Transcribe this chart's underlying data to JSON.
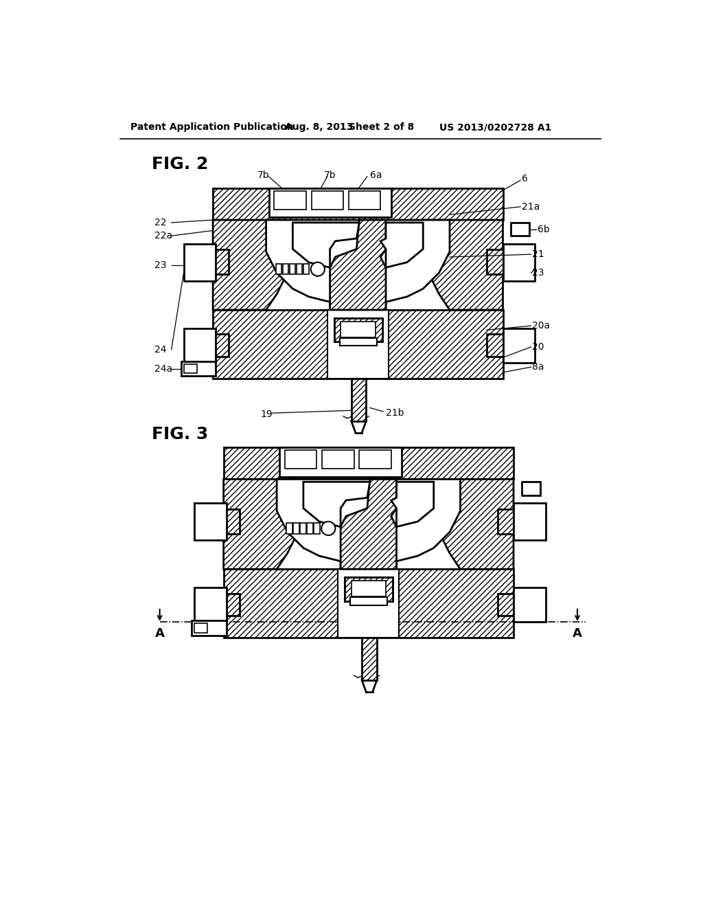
{
  "background_color": "#ffffff",
  "header_text": "Patent Application Publication",
  "header_date": "Aug. 8, 2013",
  "header_sheet": "Sheet 2 of 8",
  "header_patent": "US 2013/0202728 A1",
  "fig2_label": "FIG. 2",
  "fig3_label": "FIG. 3",
  "line_color": "#000000",
  "hatch_pattern": "////",
  "labels_fig2": [
    "7b",
    "7b",
    "6a",
    "6",
    "21a",
    "6b",
    "21",
    "23",
    "20a",
    "20",
    "8a",
    "21b",
    "19",
    "24a",
    "24",
    "23",
    "22a",
    "22"
  ],
  "labels_fig3": [
    "A",
    "A"
  ]
}
